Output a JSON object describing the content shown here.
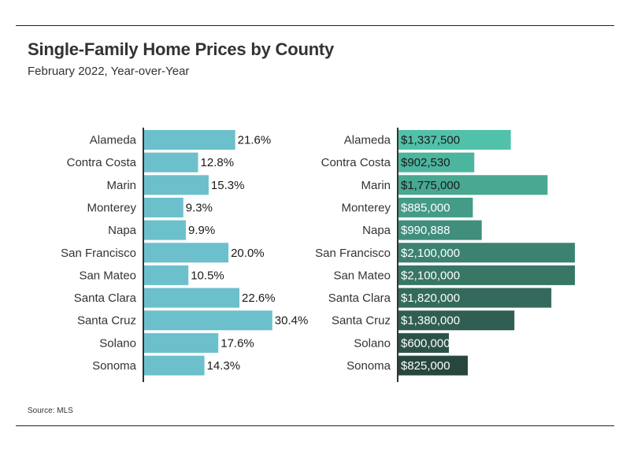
{
  "title": "Single-Family Home Prices by County",
  "subtitle": "February 2022, Year-over-Year",
  "source": "Source: MLS",
  "chart_data": [
    {
      "type": "bar",
      "orientation": "horizontal",
      "categories": [
        "Alameda",
        "Contra Costa",
        "Marin",
        "Monterey",
        "Napa",
        "San Francisco",
        "San Mateo",
        "Santa Clara",
        "Santa Cruz",
        "Solano",
        "Sonoma"
      ],
      "values": [
        21.6,
        12.8,
        15.3,
        9.3,
        9.9,
        20.0,
        10.5,
        22.6,
        30.4,
        17.6,
        14.3
      ],
      "value_labels": [
        "21.6%",
        "12.8%",
        "15.3%",
        "9.3%",
        "9.9%",
        "20.0%",
        "10.5%",
        "22.6%",
        "30.4%",
        "17.6%",
        "14.3%"
      ],
      "xlim": [
        0,
        31
      ],
      "color": "#6cc0cc",
      "grid": false
    },
    {
      "type": "bar",
      "orientation": "horizontal",
      "categories": [
        "Alameda",
        "Contra Costa",
        "Marin",
        "Monterey",
        "Napa",
        "San Francisco",
        "San Mateo",
        "Santa Clara",
        "Santa Cruz",
        "Solano",
        "Sonoma"
      ],
      "values": [
        1337500,
        902530,
        1775000,
        885000,
        990888,
        2100000,
        2100000,
        1820000,
        1380000,
        600000,
        825000
      ],
      "value_labels": [
        "$1,337,500",
        "$902,530",
        "$1,775,000",
        "$885,000",
        "$990,888",
        "$2,100,000",
        "$2,100,000",
        "$1,820,000",
        "$1,380,000",
        "$600,000",
        "$825,000"
      ],
      "xlim": [
        0,
        2100000
      ],
      "colors": [
        "#52c1aa",
        "#4cb59e",
        "#48a892",
        "#449b87",
        "#408e7c",
        "#3c8271",
        "#387666",
        "#346a5c",
        "#305e52",
        "#2c5248",
        "#27463e"
      ],
      "label_colors": [
        "#1a1a1a",
        "#1a1a1a",
        "#1a1a1a",
        "#ffffff",
        "#ffffff",
        "#ffffff",
        "#ffffff",
        "#ffffff",
        "#ffffff",
        "#ffffff",
        "#ffffff"
      ],
      "grid": false
    }
  ]
}
